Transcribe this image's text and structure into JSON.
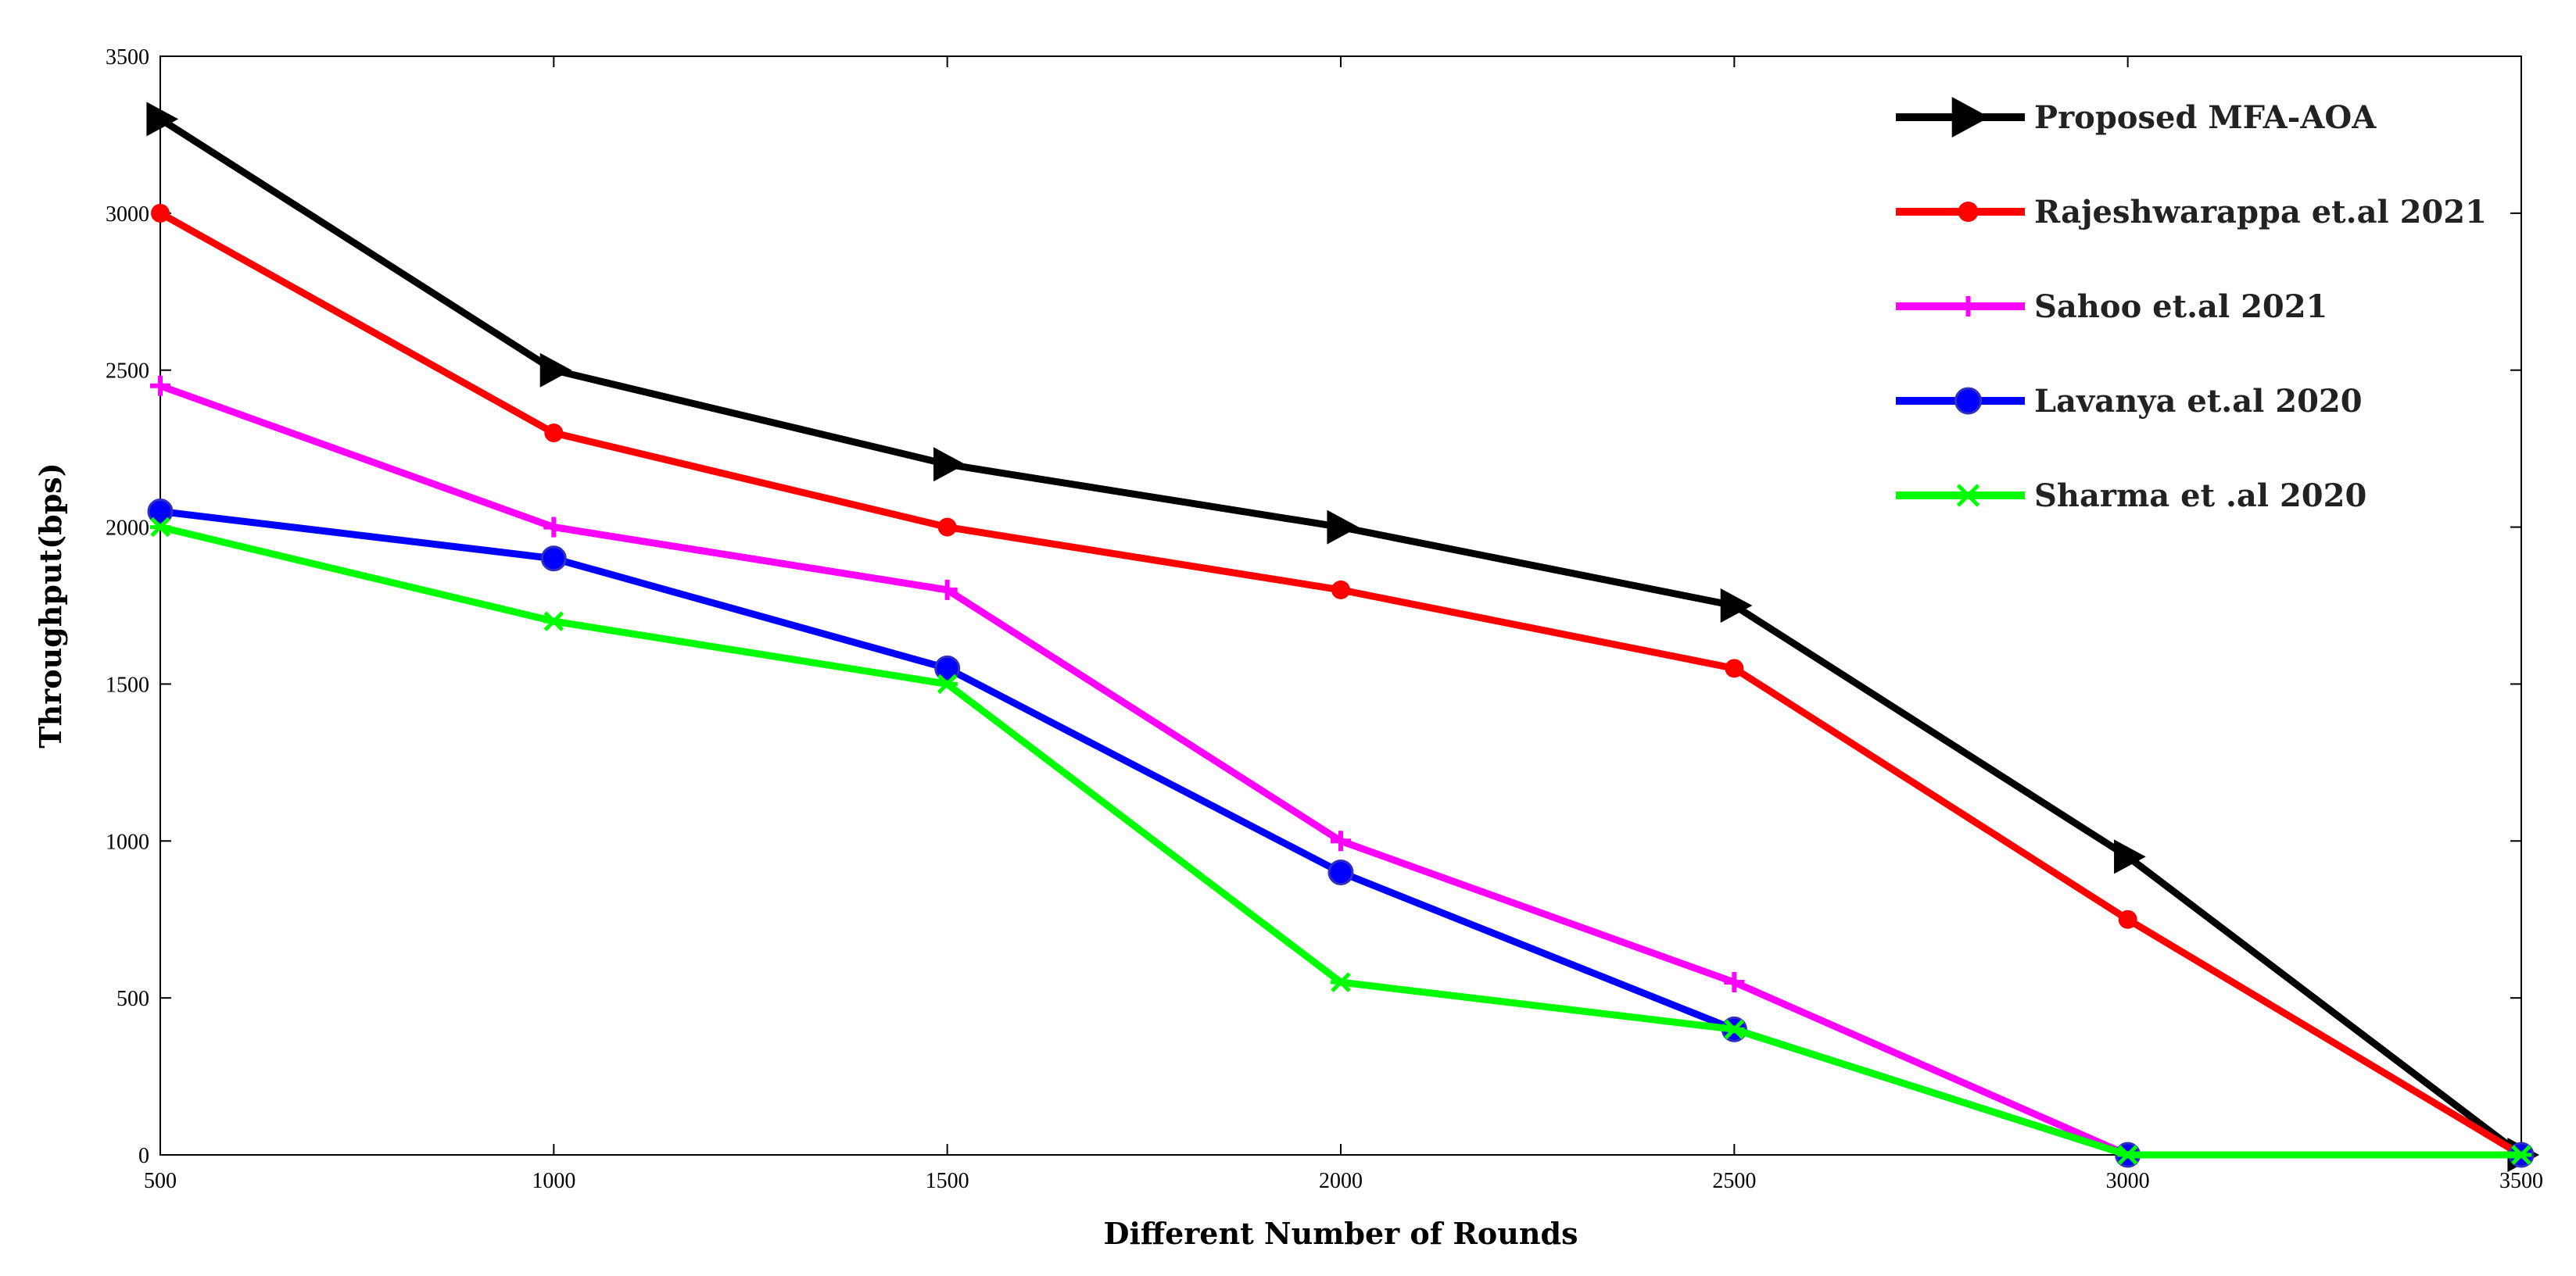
{
  "chart_data": {
    "type": "line",
    "title": "",
    "xlabel": "Different Number of Rounds",
    "ylabel": "Throughput(bps)",
    "x": [
      500,
      1000,
      1500,
      2000,
      2500,
      3000,
      3500
    ],
    "xlim": [
      500,
      3500
    ],
    "ylim": [
      0,
      3500
    ],
    "xticks": [
      500,
      1000,
      1500,
      2000,
      2500,
      3000,
      3500
    ],
    "yticks": [
      0,
      500,
      1000,
      1500,
      2000,
      2500,
      3000,
      3500
    ],
    "grid": false,
    "legend_position": "top-right",
    "series": [
      {
        "name": "Proposed MFA-AOA",
        "color": "#000000",
        "marker": "triangle-right",
        "values": [
          3300,
          2500,
          2200,
          2000,
          1750,
          950,
          0
        ]
      },
      {
        "name": "Rajeshwarappa et.al 2021",
        "color": "#ff0000",
        "marker": "dot",
        "values": [
          3000,
          2300,
          2000,
          1800,
          1550,
          750,
          0
        ]
      },
      {
        "name": "Sahoo et.al 2021",
        "color": "#ff00ff",
        "marker": "plus",
        "values": [
          2450,
          2000,
          1800,
          1000,
          550,
          0,
          0
        ]
      },
      {
        "name": "Lavanya et.al 2020",
        "color": "#0000ff",
        "marker": "circle",
        "values": [
          2050,
          1900,
          1550,
          900,
          400,
          0,
          0
        ]
      },
      {
        "name": "Sharma et .al 2020",
        "color": "#00ff00",
        "marker": "star",
        "values": [
          2000,
          1700,
          1500,
          550,
          400,
          0,
          0
        ]
      }
    ]
  }
}
